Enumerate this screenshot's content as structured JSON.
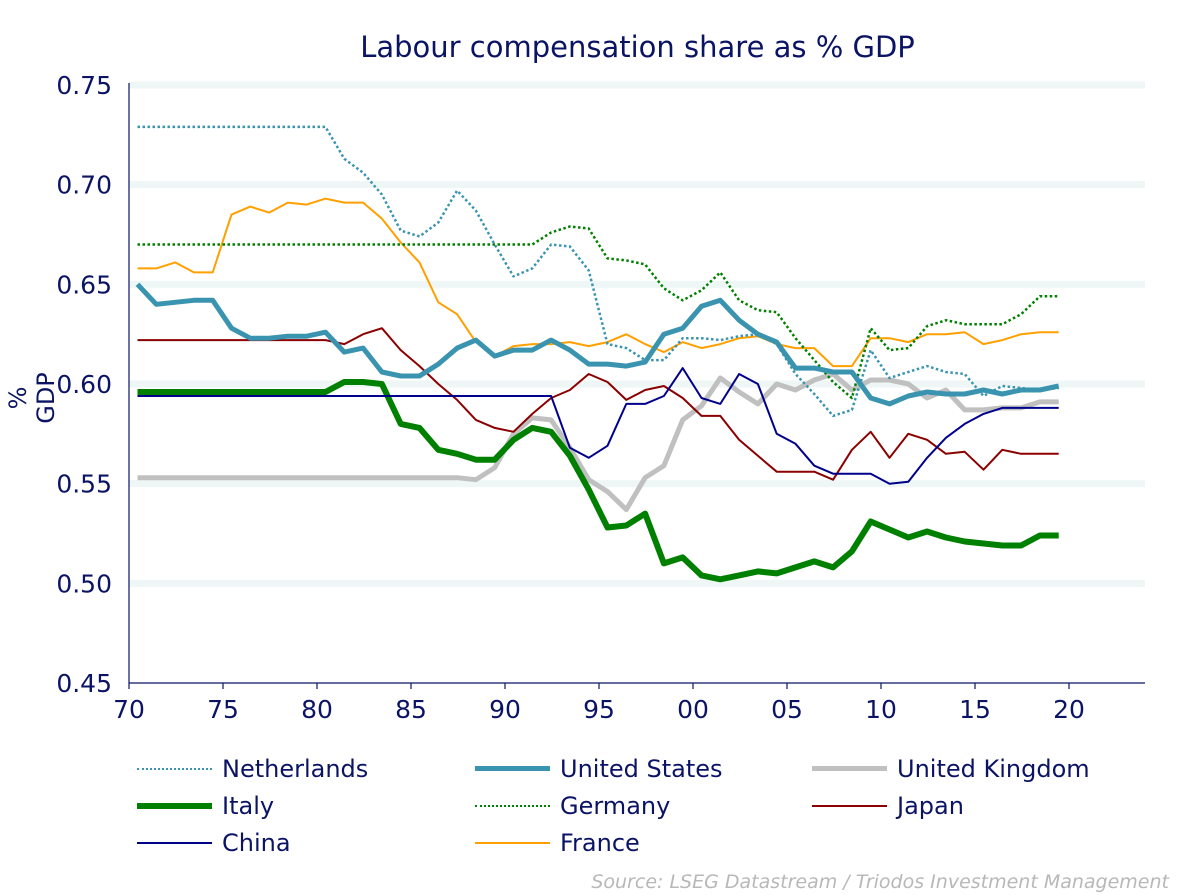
{
  "chart_data": {
    "type": "line",
    "title": "Labour compensation share as % GDP",
    "xlabel": "",
    "ylabel": "% GDP",
    "xlim": [
      1970,
      2024
    ],
    "ylim": [
      0.45,
      0.75
    ],
    "grid": true,
    "legend_position": "bottom",
    "x_ticks": [
      1970,
      1975,
      1980,
      1985,
      1990,
      1995,
      2000,
      2005,
      2010,
      2015,
      2020
    ],
    "x_tick_labels": [
      "70",
      "75",
      "80",
      "85",
      "90",
      "95",
      "00",
      "05",
      "10",
      "15",
      "20"
    ],
    "y_ticks": [
      0.45,
      0.5,
      0.55,
      0.6,
      0.65,
      0.7,
      0.75
    ],
    "y_tick_labels": [
      "0.45",
      "0.50",
      "0.55",
      "0.60",
      "0.65",
      "0.70",
      "0.75"
    ],
    "x_start": 1970,
    "series": [
      {
        "name": "Netherlands",
        "color": "#3a94b0",
        "style": "dotted",
        "width": 2.5,
        "values": [
          0.729,
          0.729,
          0.729,
          0.729,
          0.729,
          0.729,
          0.729,
          0.729,
          0.729,
          0.729,
          0.729,
          0.713,
          0.706,
          0.695,
          0.677,
          0.674,
          0.681,
          0.697,
          0.687,
          0.67,
          0.654,
          0.658,
          0.67,
          0.669,
          0.657,
          0.62,
          0.618,
          0.612,
          0.612,
          0.623,
          0.623,
          0.622,
          0.624,
          0.625,
          0.62,
          0.605,
          0.595,
          0.584,
          0.587,
          0.617,
          0.603,
          0.606,
          0.609,
          0.606,
          0.605,
          0.594,
          0.599,
          0.598,
          0.597,
          0.598
        ]
      },
      {
        "name": "United States",
        "color": "#3a94b0",
        "style": "solid",
        "width": 5,
        "values": [
          0.65,
          0.64,
          0.641,
          0.642,
          0.642,
          0.628,
          0.623,
          0.623,
          0.624,
          0.624,
          0.626,
          0.616,
          0.618,
          0.606,
          0.604,
          0.604,
          0.61,
          0.618,
          0.622,
          0.614,
          0.617,
          0.617,
          0.622,
          0.617,
          0.61,
          0.61,
          0.609,
          0.611,
          0.625,
          0.628,
          0.639,
          0.642,
          0.632,
          0.625,
          0.621,
          0.608,
          0.608,
          0.606,
          0.606,
          0.593,
          0.59,
          0.594,
          0.596,
          0.595,
          0.595,
          0.597,
          0.595,
          0.597,
          0.597,
          0.599
        ]
      },
      {
        "name": "United Kingdom",
        "color": "#c0c0c0",
        "style": "solid",
        "width": 5,
        "values": [
          0.553,
          0.553,
          0.553,
          0.553,
          0.553,
          0.553,
          0.553,
          0.553,
          0.553,
          0.553,
          0.553,
          0.553,
          0.553,
          0.553,
          0.553,
          0.553,
          0.553,
          0.553,
          0.552,
          0.558,
          0.575,
          0.583,
          0.582,
          0.568,
          0.552,
          0.546,
          0.537,
          0.553,
          0.559,
          0.582,
          0.589,
          0.603,
          0.596,
          0.59,
          0.6,
          0.597,
          0.602,
          0.605,
          0.597,
          0.602,
          0.602,
          0.6,
          0.593,
          0.597,
          0.587,
          0.587,
          0.588,
          0.588,
          0.591,
          0.591
        ]
      },
      {
        "name": "Italy",
        "color": "#008000",
        "style": "solid",
        "width": 6,
        "values": [
          0.596,
          0.596,
          0.596,
          0.596,
          0.596,
          0.596,
          0.596,
          0.596,
          0.596,
          0.596,
          0.596,
          0.601,
          0.601,
          0.6,
          0.58,
          0.578,
          0.567,
          0.565,
          0.562,
          0.562,
          0.572,
          0.578,
          0.576,
          0.564,
          0.547,
          0.528,
          0.529,
          0.535,
          0.51,
          0.513,
          0.504,
          0.502,
          0.504,
          0.506,
          0.505,
          0.508,
          0.511,
          0.508,
          0.516,
          0.531,
          0.527,
          0.523,
          0.526,
          0.523,
          0.521,
          0.52,
          0.519,
          0.519,
          0.524,
          0.524
        ]
      },
      {
        "name": "Germany",
        "color": "#008000",
        "style": "dotted",
        "width": 2.5,
        "values": [
          0.67,
          0.67,
          0.67,
          0.67,
          0.67,
          0.67,
          0.67,
          0.67,
          0.67,
          0.67,
          0.67,
          0.67,
          0.67,
          0.67,
          0.67,
          0.67,
          0.67,
          0.67,
          0.67,
          0.67,
          0.67,
          0.67,
          0.676,
          0.679,
          0.678,
          0.663,
          0.662,
          0.66,
          0.648,
          0.642,
          0.647,
          0.656,
          0.642,
          0.637,
          0.636,
          0.623,
          0.612,
          0.601,
          0.593,
          0.628,
          0.617,
          0.618,
          0.629,
          0.632,
          0.63,
          0.63,
          0.63,
          0.635,
          0.644,
          0.644
        ]
      },
      {
        "name": "Japan",
        "color": "#8b0000",
        "style": "solid",
        "width": 2,
        "values": [
          0.622,
          0.622,
          0.622,
          0.622,
          0.622,
          0.622,
          0.622,
          0.622,
          0.622,
          0.622,
          0.622,
          0.62,
          0.625,
          0.628,
          0.617,
          0.609,
          0.6,
          0.592,
          0.582,
          0.578,
          0.576,
          0.585,
          0.593,
          0.597,
          0.605,
          0.601,
          0.592,
          0.597,
          0.599,
          0.593,
          0.584,
          0.584,
          0.572,
          0.564,
          0.556,
          0.556,
          0.556,
          0.552,
          0.567,
          0.576,
          0.563,
          0.575,
          0.572,
          0.565,
          0.566,
          0.557,
          0.567,
          0.565,
          0.565,
          0.565
        ]
      },
      {
        "name": "China",
        "color": "#00008b",
        "style": "solid",
        "width": 2,
        "values": [
          0.594,
          0.594,
          0.594,
          0.594,
          0.594,
          0.594,
          0.594,
          0.594,
          0.594,
          0.594,
          0.594,
          0.594,
          0.594,
          0.594,
          0.594,
          0.594,
          0.594,
          0.594,
          0.594,
          0.594,
          0.594,
          0.594,
          0.594,
          0.568,
          0.563,
          0.569,
          0.59,
          0.59,
          0.594,
          0.608,
          0.593,
          0.59,
          0.605,
          0.6,
          0.575,
          0.57,
          0.559,
          0.555,
          0.555,
          0.555,
          0.55,
          0.551,
          0.563,
          0.573,
          0.58,
          0.585,
          0.588,
          0.588,
          0.588,
          0.588
        ]
      },
      {
        "name": "France",
        "color": "#ffa000",
        "style": "solid",
        "width": 2,
        "values": [
          0.658,
          0.658,
          0.661,
          0.656,
          0.656,
          0.685,
          0.689,
          0.686,
          0.691,
          0.69,
          0.693,
          0.691,
          0.691,
          0.683,
          0.671,
          0.661,
          0.641,
          0.635,
          0.621,
          0.614,
          0.619,
          0.62,
          0.62,
          0.621,
          0.619,
          0.621,
          0.625,
          0.62,
          0.616,
          0.621,
          0.618,
          0.62,
          0.623,
          0.624,
          0.62,
          0.618,
          0.618,
          0.609,
          0.609,
          0.623,
          0.623,
          0.621,
          0.625,
          0.625,
          0.626,
          0.62,
          0.622,
          0.625,
          0.626,
          0.626
        ]
      }
    ],
    "legend_order": [
      0,
      1,
      2,
      3,
      4,
      5,
      6,
      7
    ],
    "source": "Source: LSEG Datastream / Triodos Investment Management"
  }
}
